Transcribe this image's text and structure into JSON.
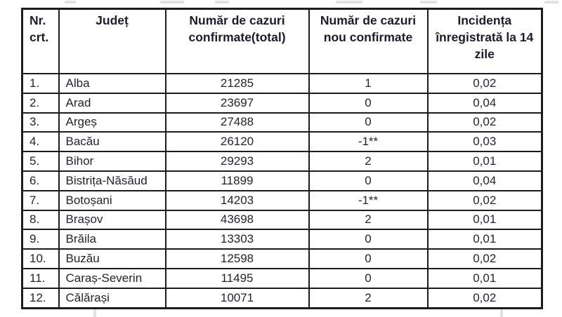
{
  "table": {
    "border_color": "#1c1c1c",
    "header_text_color": "#1b1b2c",
    "body_text_color": "#24242e",
    "columns": [
      {
        "key": "nr",
        "label": "Nr. crt."
      },
      {
        "key": "judet",
        "label": "Județ"
      },
      {
        "key": "total",
        "label": "Număr de cazuri confirmate(total)"
      },
      {
        "key": "noi",
        "label": "Număr de cazuri nou confirmate"
      },
      {
        "key": "incidenta",
        "label": "Incidența înregistrată la 14 zile"
      }
    ],
    "rows": [
      {
        "nr": "1.",
        "judet": "Alba",
        "total": "21285",
        "noi": "1",
        "incidenta": "0,02"
      },
      {
        "nr": "2.",
        "judet": "Arad",
        "total": "23697",
        "noi": "0",
        "incidenta": "0,04"
      },
      {
        "nr": "3.",
        "judet": "Argeș",
        "total": "27488",
        "noi": "0",
        "incidenta": "0,02"
      },
      {
        "nr": "4.",
        "judet": "Bacău",
        "total": "26120",
        "noi": "-1**",
        "incidenta": "0,03"
      },
      {
        "nr": "5.",
        "judet": "Bihor",
        "total": "29293",
        "noi": "2",
        "incidenta": "0,01"
      },
      {
        "nr": "6.",
        "judet": "Bistrița-Năsăud",
        "total": "11899",
        "noi": "0",
        "incidenta": "0,04"
      },
      {
        "nr": "7.",
        "judet": "Botoșani",
        "total": "14203",
        "noi": "-1**",
        "incidenta": "0,02"
      },
      {
        "nr": "8.",
        "judet": "Brașov",
        "total": "43698",
        "noi": "2",
        "incidenta": "0,01"
      },
      {
        "nr": "9.",
        "judet": "Brăila",
        "total": "13303",
        "noi": "0",
        "incidenta": "0,01"
      },
      {
        "nr": "10.",
        "judet": "Buzău",
        "total": "12598",
        "noi": "0",
        "incidenta": "0,02"
      },
      {
        "nr": "11.",
        "judet": "Caraș-Severin",
        "total": "11495",
        "noi": "0",
        "incidenta": "0,01"
      },
      {
        "nr": "12.",
        "judet": "Călărași",
        "total": "10071",
        "noi": "2",
        "incidenta": "0,02"
      }
    ]
  }
}
